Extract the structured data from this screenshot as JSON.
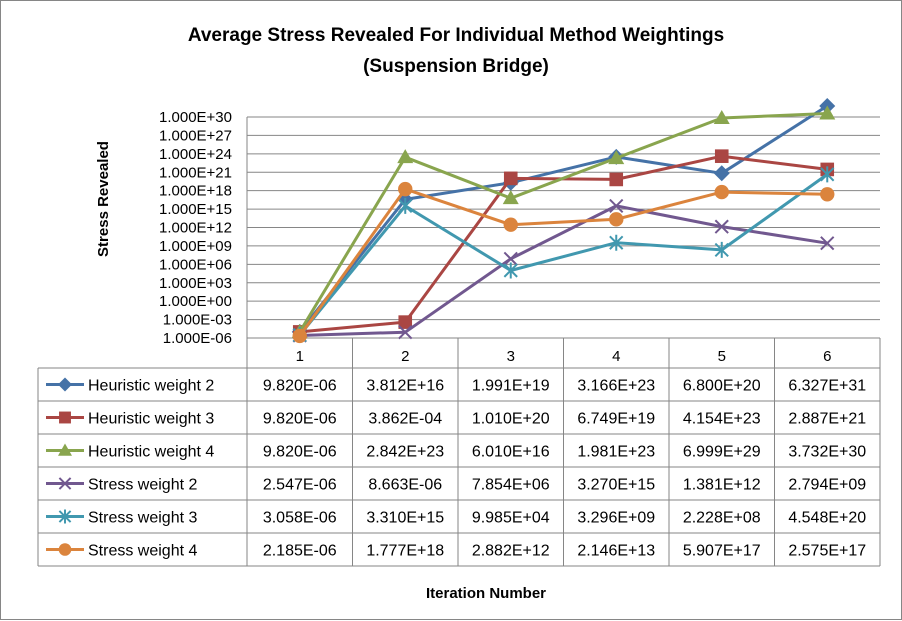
{
  "chart_data": {
    "type": "line",
    "title": "Average Stress Revealed For Individual  Method Weightings",
    "subtitle": "(Suspension Bridge)",
    "xlabel": "Iteration Number",
    "ylabel": "Stress Revealed",
    "y_scale": "log",
    "y_ticks": [
      "1.000E+30",
      "1.000E+27",
      "1.000E+24",
      "1.000E+21",
      "1.000E+18",
      "1.000E+15",
      "1.000E+12",
      "1.000E+09",
      "1.000E+06",
      "1.000E+03",
      "1.000E+00",
      "1.000E-03",
      "1.000E-06"
    ],
    "ylim": [
      1e-06,
      1e+30
    ],
    "categories": [
      "1",
      "2",
      "3",
      "4",
      "5",
      "6"
    ],
    "grid": true,
    "legend": "data-table",
    "series": [
      {
        "name": "Heuristic weight 2",
        "color": "#4572A7",
        "marker": "diamond",
        "values": [
          9.82e-06,
          3.812e+16,
          1.991e+19,
          3.166e+23,
          6.8e+20,
          6.327e+31
        ],
        "labels": [
          "9.820E-06",
          "3.812E+16",
          "1.991E+19",
          "3.166E+23",
          "6.800E+20",
          "6.327E+31"
        ]
      },
      {
        "name": "Heuristic weight 3",
        "color": "#AA4643",
        "marker": "square",
        "values": [
          9.82e-06,
          0.0003862,
          1.01e+20,
          6.749e+19,
          4.154e+23,
          2.887e+21
        ],
        "labels": [
          "9.820E-06",
          "3.862E-04",
          "1.010E+20",
          "6.749E+19",
          "4.154E+23",
          "2.887E+21"
        ]
      },
      {
        "name": "Heuristic weight 4",
        "color": "#89A54E",
        "marker": "triangle",
        "values": [
          9.82e-06,
          2.842e+23,
          6.01e+16,
          1.981e+23,
          6.999e+29,
          3.732e+30
        ],
        "labels": [
          "9.820E-06",
          "2.842E+23",
          "6.010E+16",
          "1.981E+23",
          "6.999E+29",
          "3.732E+30"
        ]
      },
      {
        "name": "Stress weight 2",
        "color": "#71588F",
        "marker": "x",
        "values": [
          2.547e-06,
          8.663e-06,
          7854000.0,
          3270000000000000.0,
          1381000000000.0,
          2794000000.0
        ],
        "labels": [
          "2.547E-06",
          "8.663E-06",
          "7.854E+06",
          "3.270E+15",
          "1.381E+12",
          "2.794E+09"
        ]
      },
      {
        "name": "Stress weight 3",
        "color": "#4198AF",
        "marker": "star",
        "values": [
          3.058e-06,
          3310000000000000.0,
          99850.0,
          3296000000.0,
          222800000.0,
          4.548e+20
        ],
        "labels": [
          "3.058E-06",
          "3.310E+15",
          "9.985E+04",
          "3.296E+09",
          "2.228E+08",
          "4.548E+20"
        ]
      },
      {
        "name": "Stress weight 4",
        "color": "#DB843D",
        "marker": "circle",
        "values": [
          2.185e-06,
          1.777e+18,
          2882000000000.0,
          21460000000000.0,
          5.907e+17,
          2.575e+17
        ],
        "labels": [
          "2.185E-06",
          "1.777E+18",
          "2.882E+12",
          "2.146E+13",
          "5.907E+17",
          "2.575E+17"
        ]
      }
    ]
  }
}
